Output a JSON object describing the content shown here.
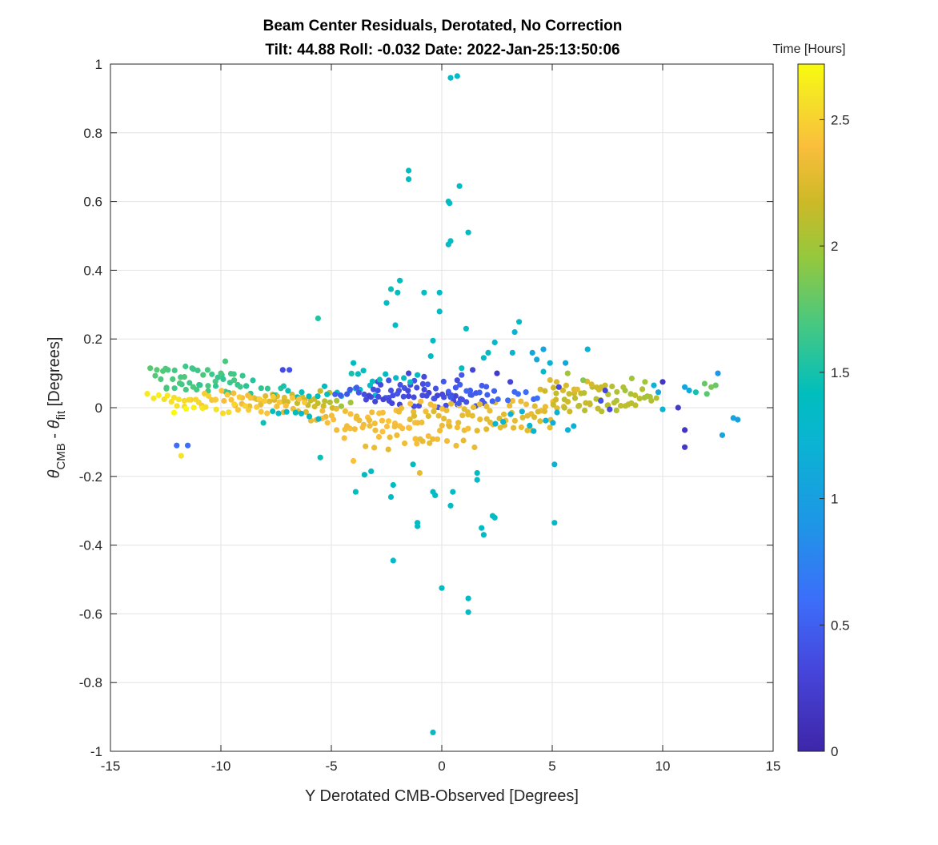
{
  "chart_data": {
    "type": "scatter",
    "title": "Beam Center Residuals, Derotated, No Correction",
    "subtitle": "Tilt: 44.88  Roll: -0.032  Date: 2022-Jan-25:13:50:06",
    "xlabel": "Y Derotated CMB-Observed [Degrees]",
    "ylabel_parts": {
      "theta1": "θ",
      "sub1": "CMB",
      "minus": " - ",
      "theta2": "θ",
      "sub2": "fit",
      "units": " [Degrees]"
    },
    "xlim": [
      -15,
      15
    ],
    "ylim": [
      -1,
      1
    ],
    "xticks": [
      -15,
      -10,
      -5,
      0,
      5,
      10,
      15
    ],
    "xtick_labels": [
      "-15",
      "-10",
      "-5",
      "0",
      "5",
      "10",
      "15"
    ],
    "yticks": [
      -1,
      -0.8,
      -0.6,
      -0.4,
      -0.2,
      0,
      0.2,
      0.4,
      0.6,
      0.8,
      1
    ],
    "ytick_labels": [
      "-1",
      "-0.8",
      "-0.6",
      "-0.4",
      "-0.2",
      "0",
      "0.2",
      "0.4",
      "0.6",
      "0.8",
      "1"
    ],
    "grid": true,
    "colorbar": {
      "label": "Time [Hours]",
      "range": [
        0,
        2.72
      ],
      "ticks": [
        0,
        0.5,
        1,
        1.5,
        2,
        2.5
      ],
      "tick_labels": [
        "0",
        "0.5",
        "1",
        "1.5",
        "2",
        "2.5"
      ],
      "colormap": "parula"
    },
    "points": [
      {
        "x": 0.4,
        "y": 0.96,
        "c": 1.35
      },
      {
        "x": 0.7,
        "y": 0.965,
        "c": 1.35
      },
      {
        "x": -1.5,
        "y": 0.69,
        "c": 1.4
      },
      {
        "x": -1.5,
        "y": 0.665,
        "c": 1.4
      },
      {
        "x": 0.8,
        "y": 0.645,
        "c": 1.35
      },
      {
        "x": 0.3,
        "y": 0.6,
        "c": 1.35
      },
      {
        "x": 0.35,
        "y": 0.595,
        "c": 1.35
      },
      {
        "x": 1.2,
        "y": 0.51,
        "c": 1.35
      },
      {
        "x": 0.4,
        "y": 0.485,
        "c": 1.35
      },
      {
        "x": 0.3,
        "y": 0.475,
        "c": 1.35
      },
      {
        "x": -1.9,
        "y": 0.37,
        "c": 1.4
      },
      {
        "x": -2.3,
        "y": 0.345,
        "c": 1.45
      },
      {
        "x": -2.0,
        "y": 0.335,
        "c": 1.4
      },
      {
        "x": -0.8,
        "y": 0.335,
        "c": 1.35
      },
      {
        "x": -0.1,
        "y": 0.335,
        "c": 1.35
      },
      {
        "x": -2.5,
        "y": 0.305,
        "c": 1.35
      },
      {
        "x": -0.1,
        "y": 0.28,
        "c": 1.35
      },
      {
        "x": -5.6,
        "y": 0.26,
        "c": 1.55
      },
      {
        "x": 3.5,
        "y": 0.25,
        "c": 1.35
      },
      {
        "x": -2.1,
        "y": 0.24,
        "c": 1.35
      },
      {
        "x": 1.1,
        "y": 0.23,
        "c": 1.35
      },
      {
        "x": 3.3,
        "y": 0.22,
        "c": 1.2
      },
      {
        "x": -0.4,
        "y": 0.195,
        "c": 1.35
      },
      {
        "x": 4.1,
        "y": 0.16,
        "c": 1.1
      },
      {
        "x": 4.6,
        "y": 0.17,
        "c": 1.05
      },
      {
        "x": 2.4,
        "y": 0.19,
        "c": 1.3
      },
      {
        "x": 6.6,
        "y": 0.17,
        "c": 1.2
      },
      {
        "x": -0.5,
        "y": 0.15,
        "c": 1.35
      },
      {
        "x": -4.0,
        "y": 0.13,
        "c": 1.4
      },
      {
        "x": -7.2,
        "y": 0.11,
        "c": 0.35
      },
      {
        "x": -6.9,
        "y": 0.11,
        "c": 0.4
      },
      {
        "x": -13.2,
        "y": 0.115,
        "c": 1.75
      },
      {
        "x": -12.9,
        "y": 0.11,
        "c": 1.75
      },
      {
        "x": -12.4,
        "y": 0.11,
        "c": 1.7
      },
      {
        "x": -11.6,
        "y": 0.12,
        "c": 1.65
      },
      {
        "x": -11.3,
        "y": 0.115,
        "c": 1.65
      },
      {
        "x": -10.6,
        "y": 0.11,
        "c": 1.7
      },
      {
        "x": -10.0,
        "y": 0.1,
        "c": 1.7
      },
      {
        "x": -9.8,
        "y": 0.135,
        "c": 1.7
      },
      {
        "x": -9.4,
        "y": 0.08,
        "c": 1.7
      },
      {
        "x": -12.0,
        "y": -0.11,
        "c": 0.6
      },
      {
        "x": -11.5,
        "y": -0.11,
        "c": 0.6
      },
      {
        "x": -11.8,
        "y": -0.14,
        "c": 2.6
      },
      {
        "x": -5.5,
        "y": -0.145,
        "c": 1.45
      },
      {
        "x": -4.0,
        "y": -0.155,
        "c": 2.4
      },
      {
        "x": -3.5,
        "y": -0.195,
        "c": 1.4
      },
      {
        "x": -3.2,
        "y": -0.185,
        "c": 1.35
      },
      {
        "x": -3.9,
        "y": -0.245,
        "c": 1.4
      },
      {
        "x": -2.2,
        "y": -0.225,
        "c": 1.35
      },
      {
        "x": -2.3,
        "y": -0.26,
        "c": 1.35
      },
      {
        "x": -1.0,
        "y": -0.19,
        "c": 2.3
      },
      {
        "x": -1.3,
        "y": -0.165,
        "c": 1.4
      },
      {
        "x": -0.4,
        "y": -0.245,
        "c": 1.35
      },
      {
        "x": -0.3,
        "y": -0.255,
        "c": 1.35
      },
      {
        "x": 0.5,
        "y": -0.245,
        "c": 1.35
      },
      {
        "x": 0.4,
        "y": -0.285,
        "c": 1.35
      },
      {
        "x": 1.6,
        "y": -0.19,
        "c": 1.35
      },
      {
        "x": 1.6,
        "y": -0.21,
        "c": 1.35
      },
      {
        "x": 2.3,
        "y": -0.315,
        "c": 1.35
      },
      {
        "x": 2.4,
        "y": -0.32,
        "c": 1.35
      },
      {
        "x": 1.8,
        "y": -0.35,
        "c": 1.35
      },
      {
        "x": 1.9,
        "y": -0.37,
        "c": 1.35
      },
      {
        "x": -1.1,
        "y": -0.335,
        "c": 1.35
      },
      {
        "x": -1.1,
        "y": -0.345,
        "c": 1.35
      },
      {
        "x": 5.1,
        "y": -0.335,
        "c": 1.3
      },
      {
        "x": 5.1,
        "y": -0.165,
        "c": 1.2
      },
      {
        "x": -2.2,
        "y": -0.445,
        "c": 1.35
      },
      {
        "x": 0.0,
        "y": -0.525,
        "c": 1.35
      },
      {
        "x": 1.2,
        "y": -0.555,
        "c": 1.35
      },
      {
        "x": 1.2,
        "y": -0.595,
        "c": 1.35
      },
      {
        "x": -0.4,
        "y": -0.945,
        "c": 1.35
      },
      {
        "x": 11.0,
        "y": -0.065,
        "c": 0.15
      },
      {
        "x": 11.0,
        "y": -0.115,
        "c": 0.2
      },
      {
        "x": 12.7,
        "y": -0.08,
        "c": 1.05
      },
      {
        "x": 13.2,
        "y": -0.03,
        "c": 1.05
      },
      {
        "x": 13.4,
        "y": -0.035,
        "c": 1.0
      },
      {
        "x": 12.5,
        "y": 0.1,
        "c": 0.9
      },
      {
        "x": 12.4,
        "y": 0.065,
        "c": 1.8
      },
      {
        "x": 12.2,
        "y": 0.06,
        "c": 1.85
      },
      {
        "x": 11.9,
        "y": 0.07,
        "c": 1.8
      },
      {
        "x": 12.0,
        "y": 0.04,
        "c": 1.75
      },
      {
        "x": 11.5,
        "y": 0.045,
        "c": 1.5
      },
      {
        "x": 11.2,
        "y": 0.05,
        "c": 1.1
      },
      {
        "x": 11.0,
        "y": 0.06,
        "c": 1.05
      },
      {
        "x": 10.7,
        "y": 0.0,
        "c": 0.2
      },
      {
        "x": 10.0,
        "y": -0.005,
        "c": 1.2
      },
      {
        "x": 10.0,
        "y": 0.075,
        "c": 0.15
      },
      {
        "x": 9.6,
        "y": 0.065,
        "c": 1.2
      },
      {
        "x": 9.8,
        "y": 0.045,
        "c": 1.1
      },
      {
        "x": 9.2,
        "y": 0.075,
        "c": 2.0
      },
      {
        "x": 7.6,
        "y": -0.005,
        "c": 0.35
      },
      {
        "x": 7.4,
        "y": 0.05,
        "c": 0.3
      },
      {
        "x": 7.2,
        "y": 0.02,
        "c": 0.4
      },
      {
        "x": 5.3,
        "y": 0.06,
        "c": 0.35
      },
      {
        "x": 3.1,
        "y": 0.075,
        "c": 0.3
      },
      {
        "x": 2.5,
        "y": 0.1,
        "c": 0.2
      },
      {
        "x": 1.4,
        "y": 0.11,
        "c": 0.3
      },
      {
        "x": 0.7,
        "y": 0.08,
        "c": 0.35
      },
      {
        "x": -0.8,
        "y": 0.09,
        "c": 0.35
      },
      {
        "x": -1.5,
        "y": 0.1,
        "c": 0.3
      },
      {
        "x": -2.3,
        "y": 0.05,
        "c": 0.4
      },
      {
        "x": 0.9,
        "y": 0.095,
        "c": 0.45
      },
      {
        "x": 4.6,
        "y": 0.105,
        "c": 1.3
      },
      {
        "x": 5.6,
        "y": 0.13,
        "c": 1.1
      },
      {
        "x": 4.9,
        "y": 0.13,
        "c": 1.2
      },
      {
        "x": 4.3,
        "y": 0.14,
        "c": 1.1
      },
      {
        "x": 3.2,
        "y": 0.16,
        "c": 1.25
      },
      {
        "x": 1.9,
        "y": 0.145,
        "c": 1.35
      },
      {
        "x": 2.1,
        "y": 0.16,
        "c": 1.35
      },
      {
        "x": 0.9,
        "y": 0.115,
        "c": 1.35
      },
      {
        "x": 5.7,
        "y": 0.1,
        "c": 2.0
      },
      {
        "x": 6.4,
        "y": 0.08,
        "c": 1.9
      },
      {
        "x": 8.6,
        "y": 0.085,
        "c": 2.0
      },
      {
        "x": 8.3,
        "y": 0.05,
        "c": 2.0
      }
    ],
    "cluster_rows": [
      {
        "y": 0.1,
        "x0": -13.0,
        "x1": -9.0,
        "step": 0.28,
        "jitter": 0.018,
        "c0": 1.72,
        "c1": 1.62
      },
      {
        "y": 0.075,
        "x0": -12.8,
        "x1": -8.5,
        "step": 0.32,
        "jitter": 0.02,
        "c0": 1.75,
        "c1": 1.6
      },
      {
        "y": 0.05,
        "x0": -12.5,
        "x1": -7.0,
        "step": 0.33,
        "jitter": 0.018,
        "c0": 1.7,
        "c1": 1.55
      },
      {
        "y": 0.035,
        "x0": -13.3,
        "x1": -5.0,
        "step": 0.28,
        "jitter": 0.015,
        "c0": 2.65,
        "c1": 2.1
      },
      {
        "y": 0.015,
        "x0": -12.6,
        "x1": -4.0,
        "step": 0.3,
        "jitter": 0.012,
        "c0": 2.6,
        "c1": 2.0
      },
      {
        "y": -0.005,
        "x0": -12.0,
        "x1": -5.0,
        "step": 0.35,
        "jitter": 0.012,
        "c0": 2.68,
        "c1": 2.2
      },
      {
        "y": 0.05,
        "x0": -7.5,
        "x1": -3.0,
        "step": 0.3,
        "jitter": 0.02,
        "c0": 1.5,
        "c1": 1.3
      },
      {
        "y": 0.04,
        "x0": -4.8,
        "x1": 1.0,
        "step": 0.22,
        "jitter": 0.02,
        "c0": 0.45,
        "c1": 0.3
      },
      {
        "y": 0.02,
        "x0": -3.5,
        "x1": 2.2,
        "step": 0.22,
        "jitter": 0.02,
        "c0": 0.3,
        "c1": 0.45
      },
      {
        "y": 0.06,
        "x0": -3.0,
        "x1": 2.5,
        "step": 0.3,
        "jitter": 0.02,
        "c0": 0.35,
        "c1": 0.5
      },
      {
        "y": -0.02,
        "x0": -6.0,
        "x1": -2.0,
        "step": 0.26,
        "jitter": 0.02,
        "c0": 2.3,
        "c1": 2.4
      },
      {
        "y": -0.045,
        "x0": -5.5,
        "x1": -1.0,
        "step": 0.28,
        "jitter": 0.02,
        "c0": 2.35,
        "c1": 2.4
      },
      {
        "y": -0.07,
        "x0": -4.5,
        "x1": 0.5,
        "step": 0.3,
        "jitter": 0.022,
        "c0": 2.4,
        "c1": 2.35
      },
      {
        "y": -0.1,
        "x0": -3.5,
        "x1": 1.5,
        "step": 0.38,
        "jitter": 0.025,
        "c0": 2.35,
        "c1": 2.3
      },
      {
        "y": 0.0,
        "x0": -2.0,
        "x1": 5.5,
        "step": 0.25,
        "jitter": 0.02,
        "c0": 2.35,
        "c1": 2.3
      },
      {
        "y": -0.03,
        "x0": -1.5,
        "x1": 5.0,
        "step": 0.27,
        "jitter": 0.022,
        "c0": 2.3,
        "c1": 2.25
      },
      {
        "y": -0.055,
        "x0": 0.0,
        "x1": 4.8,
        "step": 0.32,
        "jitter": 0.022,
        "c0": 2.35,
        "c1": 2.3
      },
      {
        "y": 0.03,
        "x0": 0.5,
        "x1": 4.5,
        "step": 0.3,
        "jitter": 0.02,
        "c0": 0.5,
        "c1": 0.6
      },
      {
        "y": 0.045,
        "x0": 4.5,
        "x1": 9.5,
        "step": 0.25,
        "jitter": 0.018,
        "c0": 2.2,
        "c1": 2.05
      },
      {
        "y": 0.02,
        "x0": 5.0,
        "x1": 9.8,
        "step": 0.25,
        "jitter": 0.015,
        "c0": 2.15,
        "c1": 2.05
      },
      {
        "y": 0.0,
        "x0": 5.5,
        "x1": 8.5,
        "step": 0.3,
        "jitter": 0.012,
        "c0": 2.15,
        "c1": 2.1
      },
      {
        "y": 0.07,
        "x0": 5.0,
        "x1": 7.5,
        "step": 0.3,
        "jitter": 0.018,
        "c0": 2.3,
        "c1": 2.2
      },
      {
        "y": -0.04,
        "x0": 2.5,
        "x1": 6.0,
        "step": 0.35,
        "jitter": 0.03,
        "c0": 1.25,
        "c1": 1.15
      },
      {
        "y": 0.09,
        "x0": -4.2,
        "x1": -1.0,
        "step": 0.35,
        "jitter": 0.02,
        "c0": 1.45,
        "c1": 1.35
      },
      {
        "y": -0.03,
        "x0": -8.0,
        "x1": -5.5,
        "step": 0.35,
        "jitter": 0.02,
        "c0": 1.45,
        "c1": 1.3
      },
      {
        "y": 0.02,
        "x0": -9.5,
        "x1": -6.0,
        "step": 0.3,
        "jitter": 0.015,
        "c0": 2.5,
        "c1": 2.4
      }
    ]
  }
}
